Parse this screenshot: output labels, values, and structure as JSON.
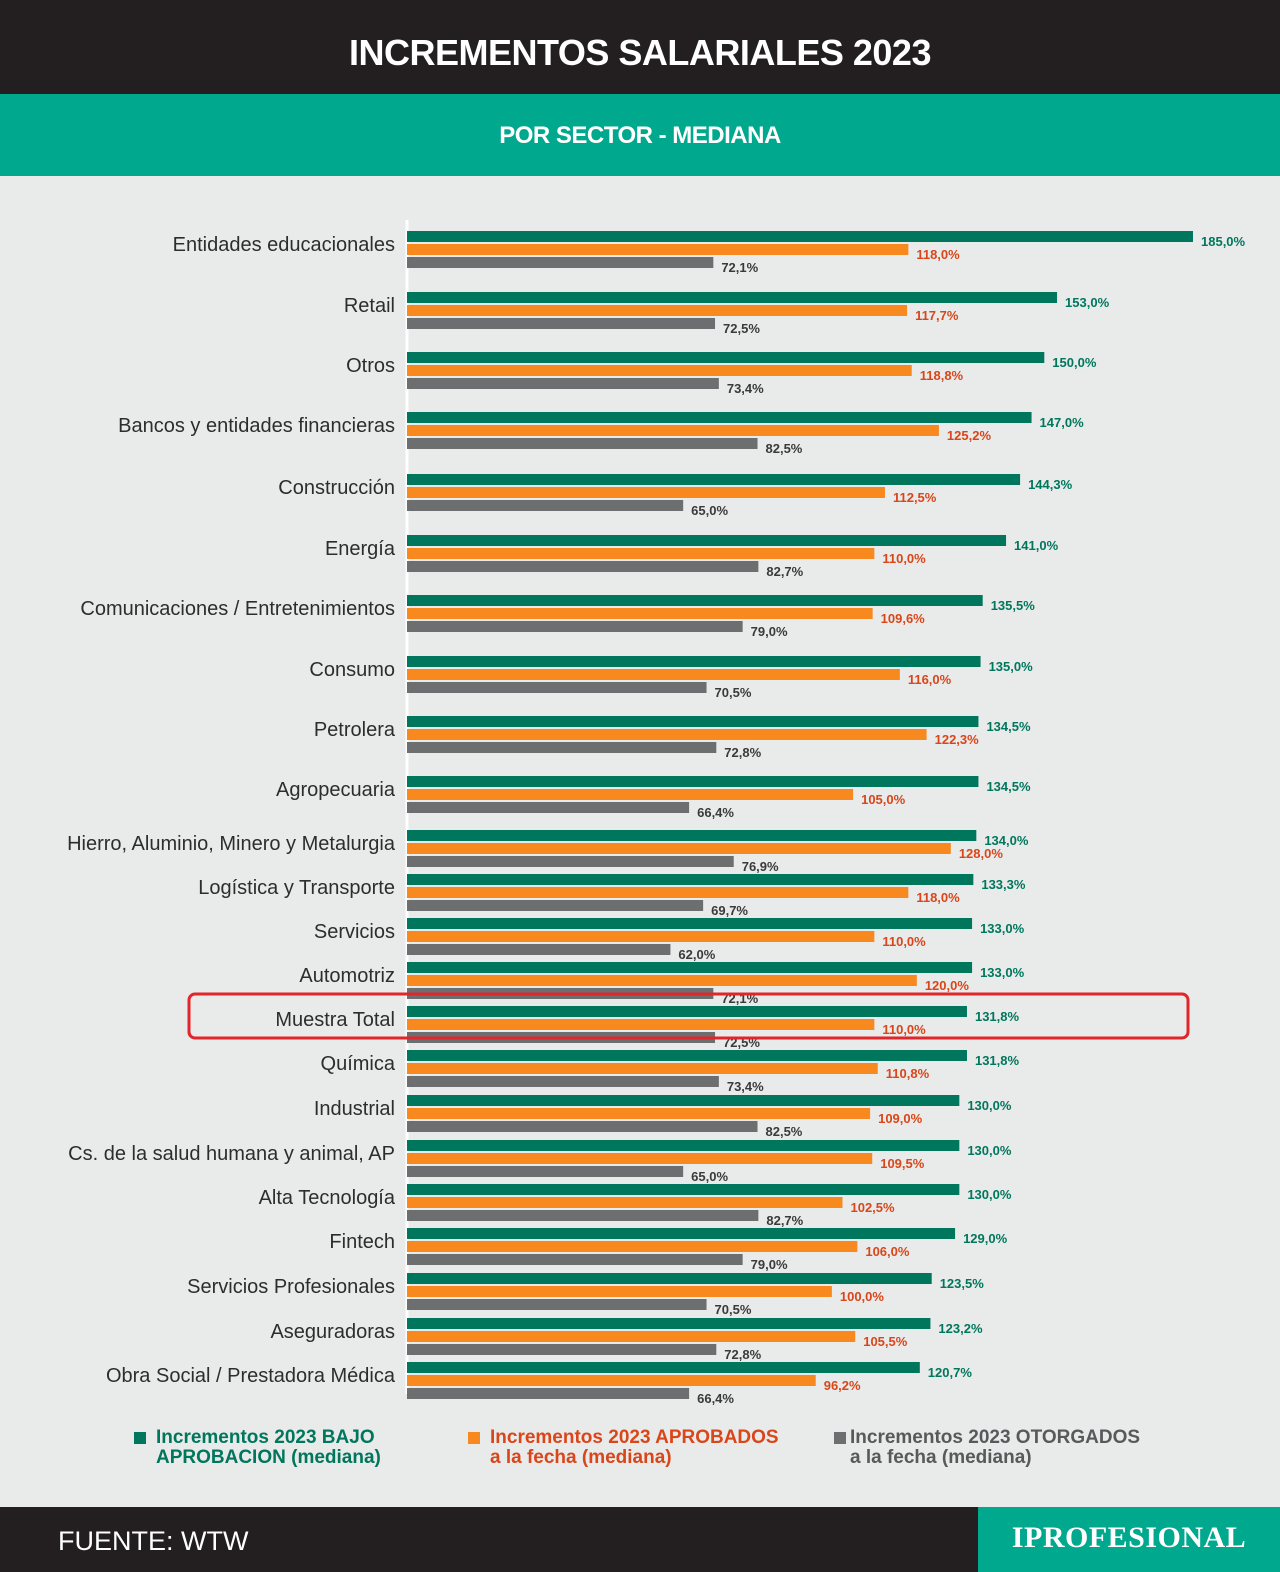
{
  "header": {
    "title": "INCREMENTOS SALARIALES 2023",
    "subtitle": "POR SECTOR - MEDIANA"
  },
  "chart_data": {
    "type": "bar",
    "orientation": "horizontal",
    "highlighted_category": "Muestra Total",
    "highlight_color": "#e0252b",
    "categories": [
      "Entidades educacionales",
      "Retail",
      "Otros",
      "Bancos y entidades financieras",
      "Construcción",
      "Energía",
      "Comunicaciones / Entretenimientos",
      "Consumo",
      "Petrolera",
      "Agropecuaria",
      "Hierro, Aluminio, Minero y Metalurgia",
      "Logística y Transporte",
      "Servicios",
      "Automotriz",
      "Muestra Total",
      "Química",
      "Industrial",
      "Cs. de la salud humana y animal, AP",
      "Alta Tecnología",
      "Fintech",
      "Servicios Profesionales",
      "Aseguradoras",
      "Obra Social / Prestadora Médica"
    ],
    "series": [
      {
        "name": "Incrementos 2023 BAJO APROBACION (mediana)",
        "color": "#00775d",
        "label_color": "#00775d",
        "values": [
          185.0,
          153.0,
          150.0,
          147.0,
          144.3,
          141.0,
          135.5,
          135.0,
          134.5,
          134.5,
          134.0,
          133.3,
          133.0,
          133.0,
          131.8,
          131.8,
          130.0,
          130.0,
          130.0,
          129.0,
          123.5,
          123.2,
          120.7
        ],
        "labels": [
          "185,0%",
          "153,0%",
          "150,0%",
          "147,0%",
          "144,3%",
          "141,0%",
          "135,5%",
          "135,0%",
          "134,5%",
          "134,5%",
          "134,0%",
          "133,3%",
          "133,0%",
          "133,0%",
          "131,8%",
          "131,8%",
          "130,0%",
          "130,0%",
          "130,0%",
          "129,0%",
          "123,5%",
          "123,2%",
          "120,7%"
        ]
      },
      {
        "name": "Incrementos 2023 APROBADOS a la fecha (mediana)",
        "color": "#f7891f",
        "label_color": "#d9461a",
        "values": [
          118.0,
          117.7,
          118.8,
          125.2,
          112.5,
          110.0,
          109.6,
          116.0,
          122.3,
          105.0,
          128.0,
          118.0,
          110.0,
          120.0,
          110.0,
          110.8,
          109.0,
          109.5,
          102.5,
          106.0,
          100.0,
          105.5,
          96.2
        ],
        "labels": [
          "118,0%",
          "117,7%",
          "118,8%",
          "125,2%",
          "112,5%",
          "110,0%",
          "109,6%",
          "116,0%",
          "122,3%",
          "105,0%",
          "128,0%",
          "118,0%",
          "110,0%",
          "120,0%",
          "110,0%",
          "110,8%",
          "109,0%",
          "109,5%",
          "102,5%",
          "106,0%",
          "100,0%",
          "105,5%",
          "96,2%"
        ]
      },
      {
        "name": "Incrementos 2023 OTORGADOS a la fecha (mediana)",
        "color": "#6d6e70",
        "label_color": "#3a3a3a",
        "values": [
          72.1,
          72.5,
          73.4,
          82.5,
          65.0,
          82.7,
          79.0,
          70.5,
          72.8,
          66.4,
          76.9,
          69.7,
          62.0,
          72.1,
          72.5,
          73.4,
          82.5,
          65.0,
          82.7,
          79.0,
          70.5,
          72.8,
          66.4
        ],
        "labels": [
          "72,1%",
          "72,5%",
          "73,4%",
          "82,5%",
          "65,0%",
          "82,7%",
          "79,0%",
          "70,5%",
          "72,8%",
          "66,4%",
          "76,9%",
          "69,7%",
          "62,0%",
          "72,1%",
          "72,5%",
          "73,4%",
          "82,5%",
          "65,0%",
          "82,7%",
          "79,0%",
          "70,5%",
          "72,8%",
          "66,4%"
        ]
      }
    ],
    "xlim": [
      0,
      185
    ],
    "grid": false
  },
  "legend": [
    {
      "line1": "Incrementos 2023 BAJO",
      "line2": "APROBACION (mediana)",
      "color": "#00775d"
    },
    {
      "line1": "Incrementos 2023 APROBADOS",
      "line2": "a la fecha (mediana)",
      "color": "#f7891f",
      "text_color": "#d9461a"
    },
    {
      "line1": "Incrementos 2023 OTORGADOS",
      "line2": "a la fecha (mediana)",
      "color": "#6d6e70",
      "text_color": "#58595b"
    }
  ],
  "footer": {
    "source": "FUENTE: WTW",
    "brand": "IPROFESIONAL"
  }
}
